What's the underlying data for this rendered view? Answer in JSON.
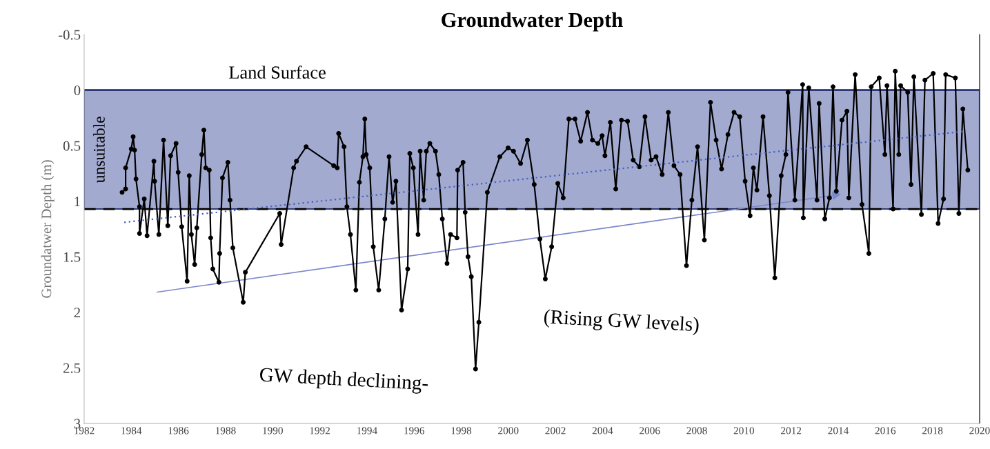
{
  "chart_data": {
    "type": "line",
    "title": "Groundwater Depth",
    "ylabel": "Groundatwer Depth (m)",
    "annotations": [
      "GW depth declining-",
      "(Rising GW levels)"
    ],
    "series": [
      {
        "color": "#000000",
        "marker": "circle",
        "line_style": "solid",
        "x": [
          1983.61,
          1983.76,
          1983.76,
          1984.0,
          1984.08,
          1984.14,
          1984.2,
          1984.35,
          1984.35,
          1984.55,
          1984.67,
          1984.96,
          1984.99,
          1985.17,
          1985.37,
          1985.55,
          1985.67,
          1985.9,
          1985.99,
          1986.14,
          1986.37,
          1986.46,
          1986.55,
          1986.69,
          1986.78,
          1986.99,
          1987.08,
          1987.16,
          1987.31,
          1987.37,
          1987.46,
          1987.72,
          1987.75,
          1987.87,
          1988.1,
          1988.19,
          1988.31,
          1988.75,
          1988.84,
          1990.3,
          1990.36,
          1990.89,
          1991.01,
          1991.42,
          1992.59,
          1992.74,
          1992.8,
          1993.03,
          1993.15,
          1993.3,
          1993.53,
          1993.68,
          1993.83,
          1993.91,
          1993.97,
          1994.12,
          1994.27,
          1994.5,
          1994.76,
          1994.94,
          1995.09,
          1995.23,
          1995.47,
          1995.73,
          1995.82,
          1995.97,
          1996.17,
          1996.26,
          1996.41,
          1996.52,
          1996.67,
          1996.91,
          1997.05,
          1997.2,
          1997.4,
          1997.55,
          1997.82,
          1997.85,
          1998.08,
          1998.17,
          1998.29,
          1998.43,
          1998.61,
          1998.75,
          1999.11,
          1999.64,
          1999.99,
          2000.22,
          2000.52,
          2000.81,
          2001.1,
          2001.34,
          2001.57,
          2001.84,
          2002.1,
          2002.33,
          2002.57,
          2002.83,
          2003.07,
          2003.36,
          2003.57,
          2003.8,
          2003.98,
          2004.1,
          2004.33,
          2004.56,
          2004.8,
          2005.06,
          2005.3,
          2005.56,
          2005.8,
          2006.06,
          2006.27,
          2006.53,
          2006.79,
          2007.03,
          2007.29,
          2007.56,
          2007.79,
          2008.03,
          2008.32,
          2008.58,
          2008.82,
          2009.05,
          2009.32,
          2009.58,
          2009.82,
          2010.05,
          2010.26,
          2010.4,
          2010.55,
          2010.81,
          2011.08,
          2011.31,
          2011.58,
          2011.78,
          2011.87,
          2012.16,
          2012.49,
          2012.52,
          2012.75,
          2013.1,
          2013.19,
          2013.43,
          2013.63,
          2013.78,
          2013.92,
          2014.16,
          2014.37,
          2014.45,
          2014.72,
          2015.01,
          2015.3,
          2015.4,
          2015.74,
          2015.98,
          2016.07,
          2016.33,
          2016.42,
          2016.57,
          2016.65,
          2016.95,
          2017.09,
          2017.21,
          2017.53,
          2017.68,
          2018.03,
          2018.24,
          2018.47,
          2018.56,
          2018.97,
          2019.12,
          2019.29,
          2019.5
        ],
        "values": [
          0.92,
          0.89,
          0.7,
          0.53,
          0.42,
          0.54,
          0.8,
          1.05,
          1.29,
          0.98,
          1.31,
          0.64,
          0.82,
          1.3,
          0.45,
          1.22,
          0.59,
          0.48,
          0.74,
          1.23,
          1.72,
          0.77,
          1.3,
          1.57,
          1.24,
          0.58,
          0.36,
          0.7,
          0.72,
          1.33,
          1.61,
          1.73,
          1.47,
          0.79,
          0.65,
          0.99,
          1.42,
          1.91,
          1.64,
          1.11,
          1.39,
          0.7,
          0.64,
          0.51,
          0.68,
          0.7,
          0.39,
          0.51,
          1.05,
          1.3,
          1.8,
          0.83,
          0.6,
          0.26,
          0.58,
          0.7,
          1.41,
          1.8,
          1.16,
          0.6,
          1.01,
          0.82,
          1.98,
          1.61,
          0.57,
          0.7,
          1.3,
          0.55,
          0.99,
          0.55,
          0.48,
          0.55,
          0.76,
          1.16,
          1.56,
          1.3,
          1.33,
          0.72,
          0.65,
          1.1,
          1.5,
          1.68,
          2.51,
          2.09,
          0.92,
          0.6,
          0.52,
          0.55,
          0.66,
          0.45,
          0.85,
          1.34,
          1.7,
          1.41,
          0.84,
          0.97,
          0.26,
          0.26,
          0.46,
          0.2,
          0.45,
          0.48,
          0.41,
          0.59,
          0.29,
          0.89,
          0.27,
          0.28,
          0.63,
          0.69,
          0.24,
          0.63,
          0.6,
          0.76,
          0.2,
          0.68,
          0.76,
          1.58,
          0.99,
          0.51,
          1.35,
          0.11,
          0.45,
          0.71,
          0.4,
          0.2,
          0.24,
          0.82,
          1.13,
          0.7,
          0.9,
          0.24,
          0.95,
          1.69,
          0.77,
          0.58,
          0.02,
          0.99,
          -0.05,
          1.15,
          -0.02,
          0.99,
          0.12,
          1.16,
          0.97,
          -0.03,
          0.91,
          0.27,
          0.19,
          0.97,
          -0.14,
          1.03,
          1.47,
          -0.03,
          -0.11,
          0.58,
          -0.04,
          1.07,
          -0.17,
          0.58,
          -0.04,
          0.02,
          0.85,
          -0.12,
          1.12,
          -0.09,
          -0.15,
          1.2,
          0.98,
          -0.14,
          -0.11,
          1.11,
          0.17,
          0.72
        ]
      },
      {
        "color": "#4a5fc1",
        "marker": "none",
        "line_style": "dotted",
        "x": [
          1983.7,
          2019.4
        ],
        "values": [
          1.19,
          0.37
        ]
      }
    ],
    "ref_lines": [
      {
        "axis": "y",
        "value": 0,
        "label": "Land Surface",
        "color": "#2e3a78",
        "line_style": "solid"
      },
      {
        "axis": "y",
        "value": 1.07,
        "color": "#000000",
        "line_style": "dashed"
      }
    ],
    "bands": [
      {
        "axis": "y",
        "from": 0,
        "to": 1.07,
        "label": "unsuitable",
        "color": "#a2aad0"
      }
    ],
    "xlim": [
      1982,
      2020
    ],
    "xticks": [
      1982,
      1984,
      1986,
      1988,
      1990,
      1992,
      1994,
      1996,
      1998,
      2000,
      2002,
      2004,
      2006,
      2008,
      2010,
      2012,
      2014,
      2016,
      2018,
      2020
    ],
    "ylim": [
      3,
      -0.5
    ],
    "yticks": [
      -0.5,
      0,
      0.5,
      1,
      1.5,
      2,
      2.5,
      3
    ],
    "grid": false,
    "legend": false
  }
}
